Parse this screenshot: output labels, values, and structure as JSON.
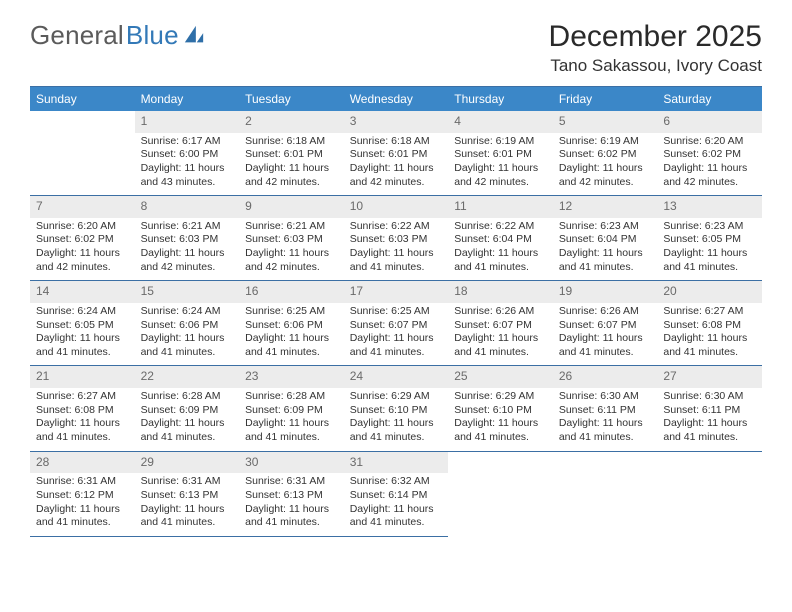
{
  "brand": {
    "name_a": "General",
    "name_b": "Blue"
  },
  "header": {
    "month_title": "December 2025",
    "location": "Tano Sakassou, Ivory Coast"
  },
  "colors": {
    "header_bg": "#3b87c8",
    "header_text": "#ffffff",
    "daynum_bg": "#ececec",
    "daynum_text": "#6a6a6a",
    "rule": "#3b6fa4",
    "body_text": "#333333",
    "logo_gray": "#5b5b5b",
    "logo_blue": "#3379b7"
  },
  "weekdays": [
    "Sunday",
    "Monday",
    "Tuesday",
    "Wednesday",
    "Thursday",
    "Friday",
    "Saturday"
  ],
  "layout": {
    "first_weekday_index": 1,
    "num_days": 31
  },
  "days": {
    "1": {
      "sunrise": "6:17 AM",
      "sunset": "6:00 PM",
      "daylight": "11 hours and 43 minutes."
    },
    "2": {
      "sunrise": "6:18 AM",
      "sunset": "6:01 PM",
      "daylight": "11 hours and 42 minutes."
    },
    "3": {
      "sunrise": "6:18 AM",
      "sunset": "6:01 PM",
      "daylight": "11 hours and 42 minutes."
    },
    "4": {
      "sunrise": "6:19 AM",
      "sunset": "6:01 PM",
      "daylight": "11 hours and 42 minutes."
    },
    "5": {
      "sunrise": "6:19 AM",
      "sunset": "6:02 PM",
      "daylight": "11 hours and 42 minutes."
    },
    "6": {
      "sunrise": "6:20 AM",
      "sunset": "6:02 PM",
      "daylight": "11 hours and 42 minutes."
    },
    "7": {
      "sunrise": "6:20 AM",
      "sunset": "6:02 PM",
      "daylight": "11 hours and 42 minutes."
    },
    "8": {
      "sunrise": "6:21 AM",
      "sunset": "6:03 PM",
      "daylight": "11 hours and 42 minutes."
    },
    "9": {
      "sunrise": "6:21 AM",
      "sunset": "6:03 PM",
      "daylight": "11 hours and 42 minutes."
    },
    "10": {
      "sunrise": "6:22 AM",
      "sunset": "6:03 PM",
      "daylight": "11 hours and 41 minutes."
    },
    "11": {
      "sunrise": "6:22 AM",
      "sunset": "6:04 PM",
      "daylight": "11 hours and 41 minutes."
    },
    "12": {
      "sunrise": "6:23 AM",
      "sunset": "6:04 PM",
      "daylight": "11 hours and 41 minutes."
    },
    "13": {
      "sunrise": "6:23 AM",
      "sunset": "6:05 PM",
      "daylight": "11 hours and 41 minutes."
    },
    "14": {
      "sunrise": "6:24 AM",
      "sunset": "6:05 PM",
      "daylight": "11 hours and 41 minutes."
    },
    "15": {
      "sunrise": "6:24 AM",
      "sunset": "6:06 PM",
      "daylight": "11 hours and 41 minutes."
    },
    "16": {
      "sunrise": "6:25 AM",
      "sunset": "6:06 PM",
      "daylight": "11 hours and 41 minutes."
    },
    "17": {
      "sunrise": "6:25 AM",
      "sunset": "6:07 PM",
      "daylight": "11 hours and 41 minutes."
    },
    "18": {
      "sunrise": "6:26 AM",
      "sunset": "6:07 PM",
      "daylight": "11 hours and 41 minutes."
    },
    "19": {
      "sunrise": "6:26 AM",
      "sunset": "6:07 PM",
      "daylight": "11 hours and 41 minutes."
    },
    "20": {
      "sunrise": "6:27 AM",
      "sunset": "6:08 PM",
      "daylight": "11 hours and 41 minutes."
    },
    "21": {
      "sunrise": "6:27 AM",
      "sunset": "6:08 PM",
      "daylight": "11 hours and 41 minutes."
    },
    "22": {
      "sunrise": "6:28 AM",
      "sunset": "6:09 PM",
      "daylight": "11 hours and 41 minutes."
    },
    "23": {
      "sunrise": "6:28 AM",
      "sunset": "6:09 PM",
      "daylight": "11 hours and 41 minutes."
    },
    "24": {
      "sunrise": "6:29 AM",
      "sunset": "6:10 PM",
      "daylight": "11 hours and 41 minutes."
    },
    "25": {
      "sunrise": "6:29 AM",
      "sunset": "6:10 PM",
      "daylight": "11 hours and 41 minutes."
    },
    "26": {
      "sunrise": "6:30 AM",
      "sunset": "6:11 PM",
      "daylight": "11 hours and 41 minutes."
    },
    "27": {
      "sunrise": "6:30 AM",
      "sunset": "6:11 PM",
      "daylight": "11 hours and 41 minutes."
    },
    "28": {
      "sunrise": "6:31 AM",
      "sunset": "6:12 PM",
      "daylight": "11 hours and 41 minutes."
    },
    "29": {
      "sunrise": "6:31 AM",
      "sunset": "6:13 PM",
      "daylight": "11 hours and 41 minutes."
    },
    "30": {
      "sunrise": "6:31 AM",
      "sunset": "6:13 PM",
      "daylight": "11 hours and 41 minutes."
    },
    "31": {
      "sunrise": "6:32 AM",
      "sunset": "6:14 PM",
      "daylight": "11 hours and 41 minutes."
    }
  },
  "labels": {
    "sunrise_prefix": "Sunrise: ",
    "sunset_prefix": "Sunset: ",
    "daylight_prefix": "Daylight: "
  }
}
